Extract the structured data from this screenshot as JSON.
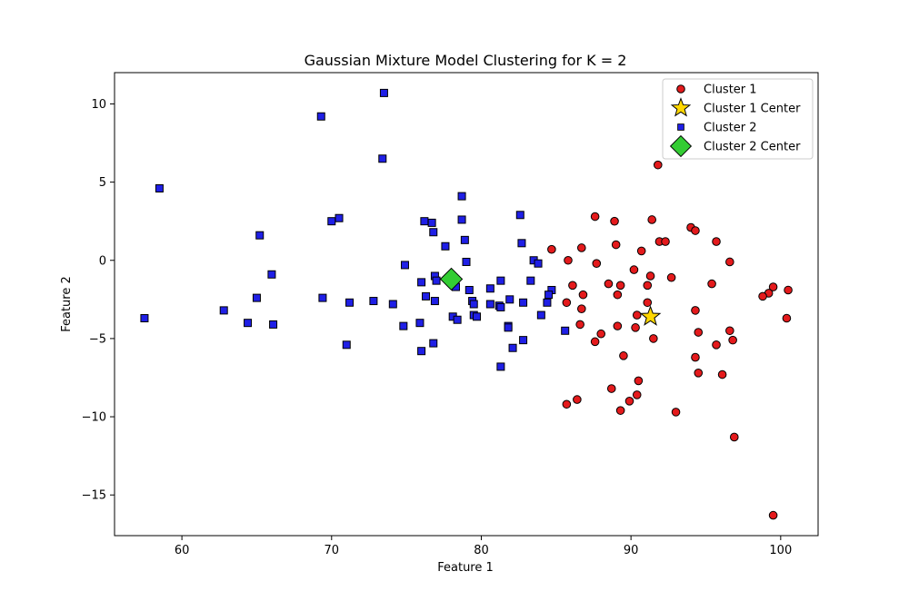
{
  "chart_data": {
    "type": "scatter",
    "title": "Gaussian Mixture Model Clustering for K = 2",
    "xlabel": "Feature 1",
    "ylabel": "Feature 2",
    "xlim": [
      55.5,
      102.5
    ],
    "ylim": [
      -17.6,
      12.0
    ],
    "xticks": [
      60,
      70,
      80,
      90,
      100
    ],
    "yticks": [
      10,
      5,
      0,
      -5,
      -10,
      -15
    ],
    "grid": false,
    "legend_position": "top-right",
    "colors": {
      "cluster1": "#e41a1c",
      "cluster2": "#1f1fe6",
      "cluster1_center": "#ffd700",
      "cluster2_center": "#33cc33"
    },
    "legend": [
      "Cluster 1",
      "Cluster 1 Center",
      "Cluster 2",
      "Cluster 2 Center"
    ],
    "series": [
      {
        "name": "Cluster 1",
        "marker": "circle",
        "points": [
          [
            91.8,
            6.1
          ],
          [
            87.6,
            2.8
          ],
          [
            88.9,
            2.5
          ],
          [
            91.4,
            2.6
          ],
          [
            94.0,
            2.1
          ],
          [
            94.3,
            1.9
          ],
          [
            91.9,
            1.2
          ],
          [
            92.3,
            1.2
          ],
          [
            95.7,
            1.2
          ],
          [
            84.7,
            0.7
          ],
          [
            86.7,
            0.8
          ],
          [
            89.0,
            1.0
          ],
          [
            90.7,
            0.6
          ],
          [
            85.8,
            0.0
          ],
          [
            87.7,
            -0.2
          ],
          [
            96.6,
            -0.1
          ],
          [
            90.2,
            -0.6
          ],
          [
            91.3,
            -1.0
          ],
          [
            92.7,
            -1.1
          ],
          [
            86.1,
            -1.6
          ],
          [
            88.5,
            -1.5
          ],
          [
            89.3,
            -1.6
          ],
          [
            91.1,
            -1.6
          ],
          [
            95.4,
            -1.5
          ],
          [
            99.5,
            -1.7
          ],
          [
            100.5,
            -1.9
          ],
          [
            86.8,
            -2.2
          ],
          [
            89.1,
            -2.2
          ],
          [
            99.2,
            -2.1
          ],
          [
            98.8,
            -2.3
          ],
          [
            85.7,
            -2.7
          ],
          [
            91.1,
            -2.7
          ],
          [
            86.7,
            -3.1
          ],
          [
            94.3,
            -3.2
          ],
          [
            90.4,
            -3.5
          ],
          [
            100.4,
            -3.7
          ],
          [
            86.6,
            -4.1
          ],
          [
            89.1,
            -4.2
          ],
          [
            90.3,
            -4.3
          ],
          [
            96.6,
            -4.5
          ],
          [
            88.0,
            -4.7
          ],
          [
            94.5,
            -4.6
          ],
          [
            91.5,
            -5.0
          ],
          [
            87.6,
            -5.2
          ],
          [
            96.8,
            -5.1
          ],
          [
            95.7,
            -5.4
          ],
          [
            89.5,
            -6.1
          ],
          [
            94.3,
            -6.2
          ],
          [
            94.5,
            -7.2
          ],
          [
            96.1,
            -7.3
          ],
          [
            90.5,
            -7.7
          ],
          [
            88.7,
            -8.2
          ],
          [
            90.4,
            -8.6
          ],
          [
            86.4,
            -8.9
          ],
          [
            85.7,
            -9.2
          ],
          [
            89.9,
            -9.0
          ],
          [
            89.3,
            -9.6
          ],
          [
            93.0,
            -9.7
          ],
          [
            96.9,
            -11.3
          ],
          [
            99.5,
            -16.3
          ]
        ]
      },
      {
        "name": "Cluster 2",
        "marker": "square",
        "points": [
          [
            73.5,
            10.7
          ],
          [
            69.3,
            9.2
          ],
          [
            73.4,
            6.5
          ],
          [
            58.5,
            4.6
          ],
          [
            78.7,
            4.1
          ],
          [
            82.6,
            2.9
          ],
          [
            70.5,
            2.7
          ],
          [
            70.0,
            2.5
          ],
          [
            76.2,
            2.5
          ],
          [
            76.7,
            2.4
          ],
          [
            78.7,
            2.6
          ],
          [
            65.2,
            1.6
          ],
          [
            76.8,
            1.8
          ],
          [
            78.9,
            1.3
          ],
          [
            82.7,
            1.1
          ],
          [
            77.6,
            0.9
          ],
          [
            83.5,
            0.0
          ],
          [
            79.0,
            -0.1
          ],
          [
            83.8,
            -0.2
          ],
          [
            74.9,
            -0.3
          ],
          [
            66.0,
            -0.9
          ],
          [
            76.9,
            -1.0
          ],
          [
            76.0,
            -1.4
          ],
          [
            77.0,
            -1.3
          ],
          [
            81.3,
            -1.3
          ],
          [
            83.3,
            -1.3
          ],
          [
            78.3,
            -1.7
          ],
          [
            79.2,
            -1.9
          ],
          [
            80.6,
            -1.8
          ],
          [
            84.7,
            -1.9
          ],
          [
            84.5,
            -2.2
          ],
          [
            76.3,
            -2.3
          ],
          [
            69.4,
            -2.4
          ],
          [
            65.0,
            -2.4
          ],
          [
            72.8,
            -2.6
          ],
          [
            71.2,
            -2.7
          ],
          [
            74.1,
            -2.8
          ],
          [
            76.9,
            -2.6
          ],
          [
            79.4,
            -2.6
          ],
          [
            79.5,
            -2.8
          ],
          [
            81.9,
            -2.5
          ],
          [
            80.6,
            -2.8
          ],
          [
            82.8,
            -2.7
          ],
          [
            84.4,
            -2.7
          ],
          [
            81.2,
            -2.9
          ],
          [
            81.3,
            -3.0
          ],
          [
            62.8,
            -3.2
          ],
          [
            57.5,
            -3.7
          ],
          [
            79.5,
            -3.5
          ],
          [
            79.7,
            -3.6
          ],
          [
            78.1,
            -3.6
          ],
          [
            78.4,
            -3.8
          ],
          [
            84.0,
            -3.5
          ],
          [
            64.4,
            -4.0
          ],
          [
            66.1,
            -4.1
          ],
          [
            75.9,
            -4.0
          ],
          [
            74.8,
            -4.2
          ],
          [
            81.8,
            -4.2
          ],
          [
            81.8,
            -4.3
          ],
          [
            85.6,
            -4.5
          ],
          [
            82.8,
            -5.1
          ],
          [
            76.8,
            -5.3
          ],
          [
            71.0,
            -5.4
          ],
          [
            82.1,
            -5.6
          ],
          [
            76.0,
            -5.8
          ],
          [
            81.3,
            -6.8
          ]
        ]
      },
      {
        "name": "Cluster 1 Center",
        "marker": "star",
        "points": [
          [
            91.3,
            -3.6
          ]
        ]
      },
      {
        "name": "Cluster 2 Center",
        "marker": "diamond",
        "points": [
          [
            78.0,
            -1.2
          ]
        ]
      }
    ]
  }
}
